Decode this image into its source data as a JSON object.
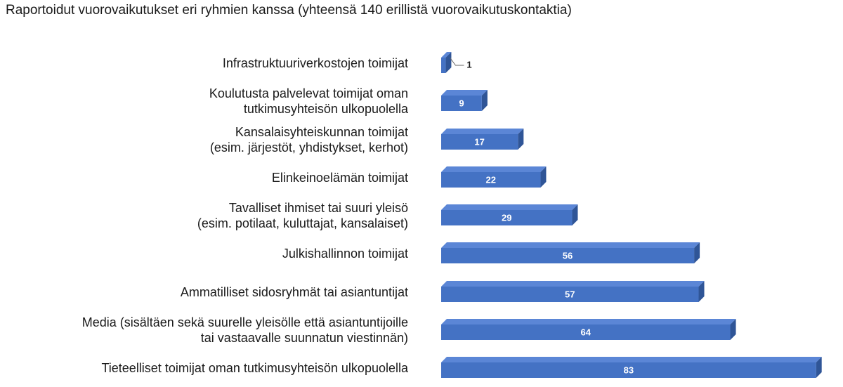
{
  "chart_data": {
    "type": "bar",
    "orientation": "horizontal",
    "title": "Raportoidut vuorovaikutukset eri ryhmien kanssa (yhteensä 140 erillistä vuorovaikutuskontaktia)",
    "categories": [
      [
        "Infrastruktuuriverkostojen toimijat"
      ],
      [
        "Koulutusta palvelevat toimijat oman",
        "tutkimusyhteisön ulkopuolella"
      ],
      [
        "Kansalaisyhteiskunnan toimijat",
        "(esim. järjestöt, yhdistykset, kerhot)"
      ],
      [
        "Elinkeinoelämän toimijat"
      ],
      [
        "Tavalliset ihmiset tai suuri yleisö",
        "(esim. potilaat, kuluttajat, kansalaiset)"
      ],
      [
        "Julkishallinnon toimijat"
      ],
      [
        "Ammatilliset sidosryhmät tai asiantuntijat"
      ],
      [
        "Media (sisältäen sekä suurelle yleisölle että asiantuntijoille",
        "tai vastaavalle suunnatun viestinnän)"
      ],
      [
        "Tieteelliset toimijat oman tutkimusyhteisön ulkopuolella"
      ]
    ],
    "values": [
      1,
      9,
      17,
      22,
      29,
      56,
      57,
      64,
      83
    ],
    "data_labels": [
      "1",
      "9",
      "17",
      "22",
      "29",
      "56",
      "57",
      "64",
      "83"
    ],
    "grid": false,
    "legend": "none",
    "colors": {
      "bar_front": "#4472c4",
      "bar_top": "#5b86d6",
      "bar_side": "#2f5597",
      "label_inside": "#ffffff",
      "label_outside": "#1a1a1a"
    }
  }
}
